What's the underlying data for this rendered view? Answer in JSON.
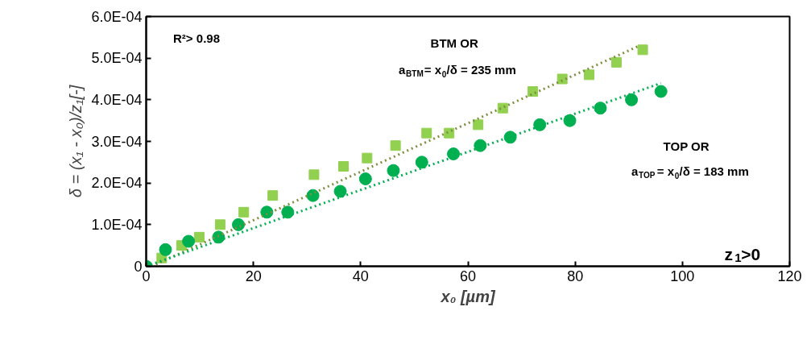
{
  "chart_data": {
    "type": "scatter",
    "xlabel": "x₀ [µm]",
    "ylabel": "δ = (x₁ - x₀)/z₁[-]",
    "xlim": [
      0,
      120
    ],
    "xticks": [
      0,
      20,
      40,
      60,
      80,
      100,
      120
    ],
    "ylim": [
      0,
      0.0006
    ],
    "yticks": [
      {
        "value": 0,
        "label": "0"
      },
      {
        "value": 0.0001,
        "label": "1.0E-04"
      },
      {
        "value": 0.0002,
        "label": "2.0E-04"
      },
      {
        "value": 0.0003,
        "label": "3.0E-04"
      },
      {
        "value": 0.0004,
        "label": "4.0E-04"
      },
      {
        "value": 0.0005,
        "label": "5.0E-04"
      },
      {
        "value": 0.0006,
        "label": "6.0E-04"
      }
    ],
    "grid": false,
    "annotations": [
      "R²> 0.98",
      "BTM OR",
      "a$_{BTM}$= x$_{0}$/δ = 235 mm",
      "TOP OR",
      "a$_{TOP}$= x$_{0}$/δ = 183 mm",
      "z$_{1}$>0"
    ],
    "series": [
      {
        "marker": "square",
        "color": "#92d050",
        "x": [
          2.9,
          6.6,
          9.9,
          13.8,
          18.2,
          23.6,
          31.3,
          36.8,
          41.2,
          46.5,
          52.3,
          56.5,
          61.9,
          66.5,
          72.1,
          77.6,
          82.6,
          87.7,
          92.6
        ],
        "values": [
          2e-05,
          5e-05,
          7e-05,
          0.0001,
          0.00013,
          0.00017,
          0.00022,
          0.00024,
          0.00026,
          0.00029,
          0.00032,
          0.00032,
          0.00034,
          0.00038,
          0.00042,
          0.00045,
          0.00046,
          0.00049,
          0.00052
        ]
      },
      {
        "marker": "circle",
        "color": "#00b050",
        "x": [
          0,
          3.6,
          7.9,
          13.5,
          17.2,
          22.5,
          26.4,
          31.1,
          36.2,
          40.9,
          46.1,
          51.4,
          57.3,
          62.3,
          67.9,
          73.4,
          79.0,
          84.7,
          90.5,
          96.0
        ],
        "values": [
          0,
          4e-05,
          6e-05,
          7e-05,
          0.0001,
          0.00013,
          0.00013,
          0.00017,
          0.00018,
          0.00021,
          0.00023,
          0.00025,
          0.00027,
          0.00029,
          0.00031,
          0.00034,
          0.00035,
          0.00038,
          0.0004,
          0.00042
        ]
      },
      {
        "type": "line",
        "line_style": "dotted",
        "color": "#7f8f3f",
        "x": [
          1,
          92
        ],
        "values": [
          0,
          0.00053
        ]
      },
      {
        "type": "line",
        "line_style": "dotted",
        "color": "#00b050",
        "x": [
          0,
          96
        ],
        "values": [
          0,
          0.00044
        ]
      }
    ]
  }
}
